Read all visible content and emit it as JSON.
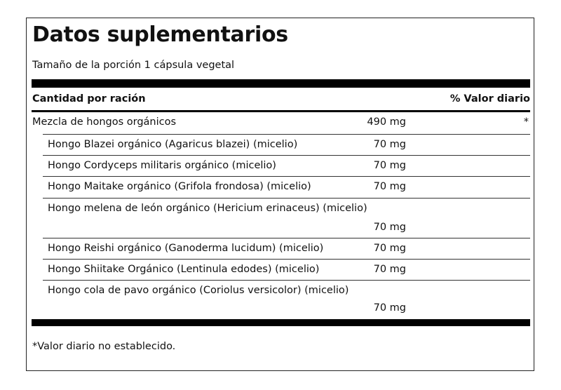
{
  "header": {
    "title": "Datos suplementarios",
    "serving_size": "Tamaño de la porción 1 cápsula vegetal"
  },
  "table": {
    "columns": {
      "amount": "Cantidad por ración",
      "daily_value": "% Valor diario"
    },
    "rows": [
      {
        "name": "Mezcla de hongos orgánicos",
        "amount": "490 mg",
        "daily_value": "*"
      },
      {
        "name": "Hongo Blazei orgánico (Agaricus blazei) (micelio)",
        "amount": "70 mg"
      },
      {
        "name": "Hongo Cordyceps militaris orgánico (micelio)",
        "amount": "70 mg"
      },
      {
        "name": "Hongo Maitake orgánico (Grifola frondosa) (micelio)",
        "amount": "70 mg"
      },
      {
        "name": "Hongo melena de león orgánico (Hericium erinaceus) (micelio)",
        "amount": "70 mg"
      },
      {
        "name": "Hongo Reishi orgánico (Ganoderma lucidum) (micelio)",
        "amount": "70 mg"
      },
      {
        "name": "Hongo Shiitake Orgánico (Lentinula edodes) (micelio)",
        "amount": "70 mg"
      },
      {
        "name": "Hongo cola de pavo orgánico (Coriolus versicolor) (micelio)",
        "amount": "70 mg"
      }
    ]
  },
  "footnote": "*Valor diario no establecido."
}
